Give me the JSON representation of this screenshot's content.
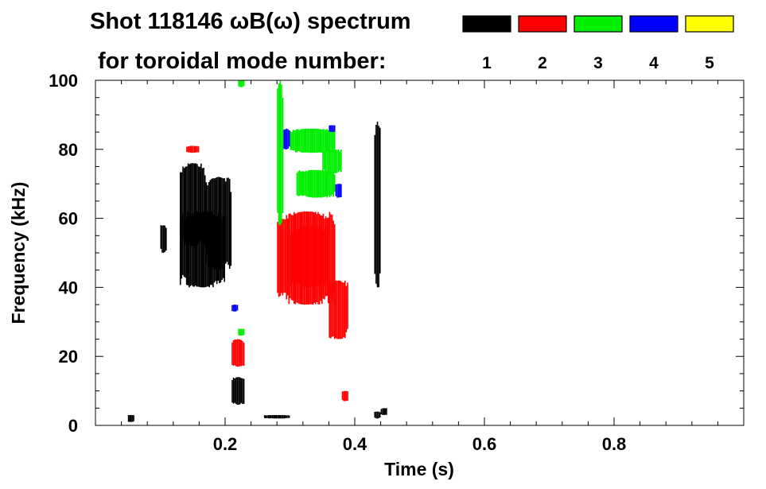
{
  "header": {
    "title": "Shot 118146 ωB(ω) spectrum",
    "subtitle": "for toroidal mode number:"
  },
  "chart_data": {
    "type": "heatmap",
    "xlabel": "Time (s)",
    "ylabel": "Frequency (kHz)",
    "xlim": [
      0.0,
      1.0
    ],
    "ylim": [
      0,
      100
    ],
    "xticks": [
      0.2,
      0.4,
      0.6,
      0.8
    ],
    "xtick_labels": [
      "0.2",
      "0.4",
      "0.6",
      "0.8"
    ],
    "yticks": [
      0,
      20,
      40,
      60,
      80,
      100
    ],
    "ytick_labels": [
      "0",
      "20",
      "40",
      "60",
      "80",
      "100"
    ],
    "grid": false,
    "legend": {
      "placement": "top-right",
      "entries": [
        {
          "label": "1",
          "color": "#000000"
        },
        {
          "label": "2",
          "color": "#ff0000"
        },
        {
          "label": "3",
          "color": "#00ee00"
        },
        {
          "label": "4",
          "color": "#0000ff"
        },
        {
          "label": "5",
          "color": "#ffff00"
        }
      ]
    },
    "series": [
      {
        "name": "1",
        "color": "#000000",
        "regions": [
          {
            "t0": 0.1,
            "t1": 0.11,
            "f0": 50,
            "f1": 58
          },
          {
            "t0": 0.13,
            "t1": 0.17,
            "f0": 52,
            "f1": 76
          },
          {
            "t0": 0.17,
            "t1": 0.21,
            "f0": 45,
            "f1": 72
          },
          {
            "t0": 0.13,
            "t1": 0.2,
            "f0": 40,
            "f1": 62
          },
          {
            "t0": 0.21,
            "t1": 0.23,
            "f0": 6,
            "f1": 14
          },
          {
            "t0": 0.43,
            "t1": 0.44,
            "f0": 40,
            "f1": 88
          },
          {
            "t0": 0.43,
            "t1": 0.44,
            "f0": 2,
            "f1": 4
          },
          {
            "t0": 0.44,
            "t1": 0.45,
            "f0": 3,
            "f1": 5
          },
          {
            "t0": 0.05,
            "t1": 0.06,
            "f0": 1,
            "f1": 3
          },
          {
            "t0": 0.26,
            "t1": 0.3,
            "f0": 2,
            "f1": 3
          }
        ]
      },
      {
        "name": "2",
        "color": "#ff0000",
        "regions": [
          {
            "t0": 0.28,
            "t1": 0.37,
            "f0": 35,
            "f1": 62
          },
          {
            "t0": 0.3,
            "t1": 0.36,
            "f0": 40,
            "f1": 58
          },
          {
            "t0": 0.36,
            "t1": 0.39,
            "f0": 25,
            "f1": 42
          },
          {
            "t0": 0.21,
            "t1": 0.23,
            "f0": 17,
            "f1": 25
          },
          {
            "t0": 0.14,
            "t1": 0.16,
            "f0": 79,
            "f1": 81
          },
          {
            "t0": 0.38,
            "t1": 0.39,
            "f0": 7,
            "f1": 10
          }
        ]
      },
      {
        "name": "3",
        "color": "#00ee00",
        "regions": [
          {
            "t0": 0.3,
            "t1": 0.37,
            "f0": 79,
            "f1": 86
          },
          {
            "t0": 0.35,
            "t1": 0.38,
            "f0": 73,
            "f1": 80
          },
          {
            "t0": 0.31,
            "t1": 0.37,
            "f0": 66,
            "f1": 74
          },
          {
            "t0": 0.22,
            "t1": 0.23,
            "f0": 98,
            "f1": 100
          },
          {
            "t0": 0.28,
            "t1": 0.29,
            "f0": 58,
            "f1": 100
          },
          {
            "t0": 0.22,
            "t1": 0.23,
            "f0": 26,
            "f1": 28
          }
        ]
      },
      {
        "name": "4",
        "color": "#0000ff",
        "regions": [
          {
            "t0": 0.29,
            "t1": 0.3,
            "f0": 80,
            "f1": 86
          },
          {
            "t0": 0.37,
            "t1": 0.38,
            "f0": 66,
            "f1": 70
          },
          {
            "t0": 0.36,
            "t1": 0.37,
            "f0": 85,
            "f1": 87
          },
          {
            "t0": 0.21,
            "t1": 0.22,
            "f0": 33,
            "f1": 35
          }
        ]
      },
      {
        "name": "5",
        "color": "#ffff00",
        "regions": []
      }
    ]
  }
}
